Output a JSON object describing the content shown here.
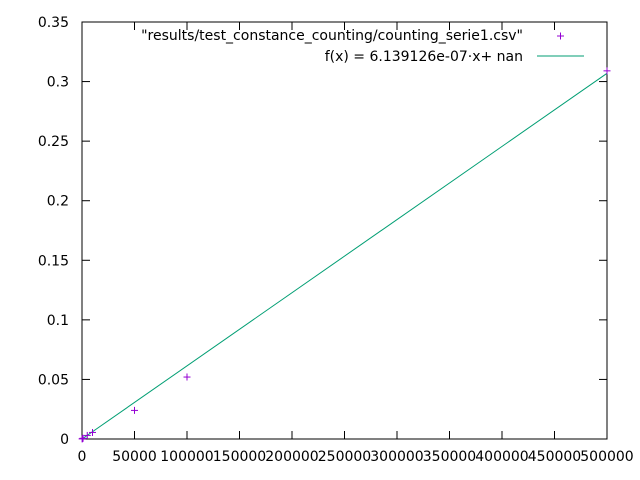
{
  "chart_data": {
    "type": "scatter",
    "title": "",
    "xlabel": "",
    "ylabel": "",
    "xlim": [
      0,
      500000
    ],
    "ylim": [
      0,
      0.35
    ],
    "x_ticks": [
      "0",
      "50000",
      "100000",
      "150000",
      "200000",
      "250000",
      "300000",
      "350000",
      "400000",
      "450000",
      "500000"
    ],
    "x_tick_values": [
      0,
      50000,
      100000,
      150000,
      200000,
      250000,
      300000,
      350000,
      400000,
      450000,
      500000
    ],
    "y_ticks": [
      "0",
      "0.05",
      "0.1",
      "0.15",
      "0.2",
      "0.25",
      "0.3",
      "0.35"
    ],
    "y_tick_values": [
      0,
      0.05,
      0.1,
      0.15,
      0.2,
      0.25,
      0.3,
      0.35
    ],
    "grid": false,
    "legend_position": "top-right",
    "series": [
      {
        "name": "\"results/test_constance_counting/counting_serie1.csv\"",
        "kind": "points",
        "marker": "plus",
        "color": "#9400d3",
        "x": [
          100,
          500,
          1000,
          5000,
          10000,
          50000,
          100000,
          500000
        ],
        "y": [
          0.0001,
          0.0003,
          0.0006,
          0.003,
          0.0055,
          0.024,
          0.052,
          0.309
        ]
      },
      {
        "name": "f(x) = 6.139126e-07·x+ nan",
        "kind": "line",
        "color": "#009e73",
        "slope": 6.139126e-07,
        "x": [
          0,
          500000
        ]
      }
    ]
  }
}
